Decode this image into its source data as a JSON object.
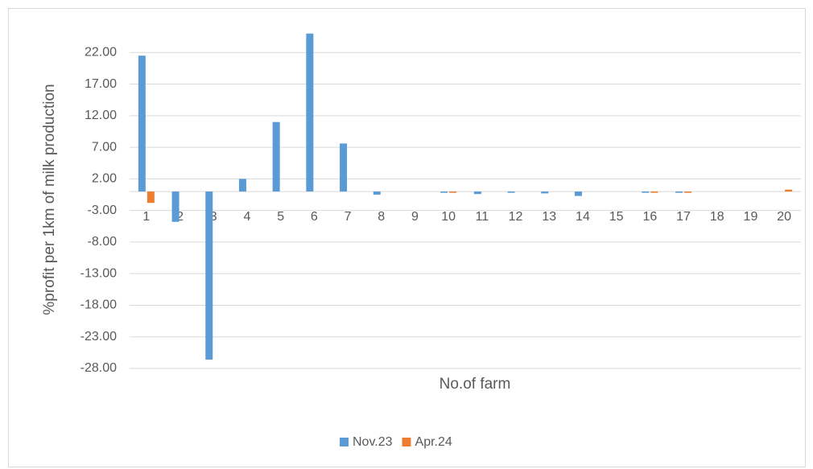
{
  "chart_data": {
    "type": "bar",
    "x_label": "No.of farm",
    "y_label": "%profit per 1km of milk production",
    "categories": [
      "1",
      "2",
      "3",
      "4",
      "5",
      "6",
      "7",
      "8",
      "9",
      "10",
      "11",
      "12",
      "13",
      "14",
      "15",
      "16",
      "17",
      "18",
      "19",
      "20"
    ],
    "series": [
      {
        "name": "Nov.23",
        "color": "#5b9bd5",
        "values": [
          21.5,
          -4.8,
          -26.6,
          2.0,
          11.0,
          25.0,
          7.6,
          -0.5,
          0,
          -0.2,
          -0.4,
          -0.2,
          -0.3,
          -0.7,
          0,
          -0.2,
          -0.2,
          0,
          0,
          0
        ]
      },
      {
        "name": "Apr.24",
        "color": "#ed7d31",
        "values": [
          -1.8,
          0,
          0,
          0,
          0,
          0,
          0,
          0,
          0,
          -0.2,
          0,
          0,
          0,
          0,
          0,
          -0.2,
          -0.2,
          0,
          0,
          0.3
        ]
      }
    ],
    "ylim": [
      -28,
      27
    ],
    "yticks": [
      {
        "value": 22,
        "label": "22.00"
      },
      {
        "value": 17,
        "label": "17.00"
      },
      {
        "value": 12,
        "label": "12.00"
      },
      {
        "value": 7,
        "label": "7.00"
      },
      {
        "value": 2,
        "label": "2.00"
      },
      {
        "value": -3,
        "label": "-3.00"
      },
      {
        "value": -8,
        "label": "-8.00"
      },
      {
        "value": -13,
        "label": "-13.00"
      },
      {
        "value": -18,
        "label": "-18.00"
      },
      {
        "value": -23,
        "label": "-23.00"
      },
      {
        "value": -28,
        "label": "-28.00"
      }
    ],
    "grid": true,
    "legend": "bottom"
  }
}
